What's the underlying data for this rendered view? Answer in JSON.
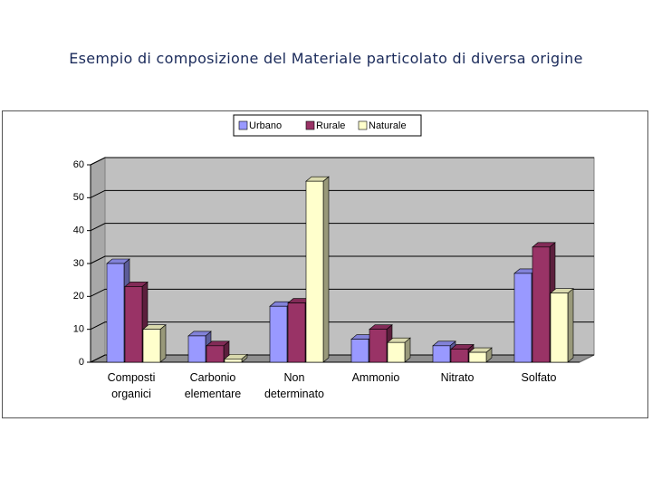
{
  "chart_data": {
    "type": "bar3d",
    "title": "Esempio di composizione del Materiale particolato di diversa origine",
    "categories": [
      "Composti organici",
      "Carbonio elementare",
      "Non determinato",
      "Ammonio",
      "Nitrato",
      "Solfato"
    ],
    "series": [
      {
        "name": "Urbano",
        "color": "#9999ff",
        "values": [
          30,
          8,
          17,
          7,
          5,
          27
        ]
      },
      {
        "name": "Rurale",
        "color": "#993366",
        "values": [
          23,
          5,
          18,
          10,
          4,
          35
        ]
      },
      {
        "name": "Naturale",
        "color": "#ffffcc",
        "values": [
          10,
          1,
          55,
          6,
          3,
          21
        ]
      }
    ],
    "ylim": [
      0,
      60
    ],
    "yticks": [
      0,
      10,
      20,
      30,
      40,
      50,
      60
    ],
    "grid": true,
    "legend": "top"
  }
}
